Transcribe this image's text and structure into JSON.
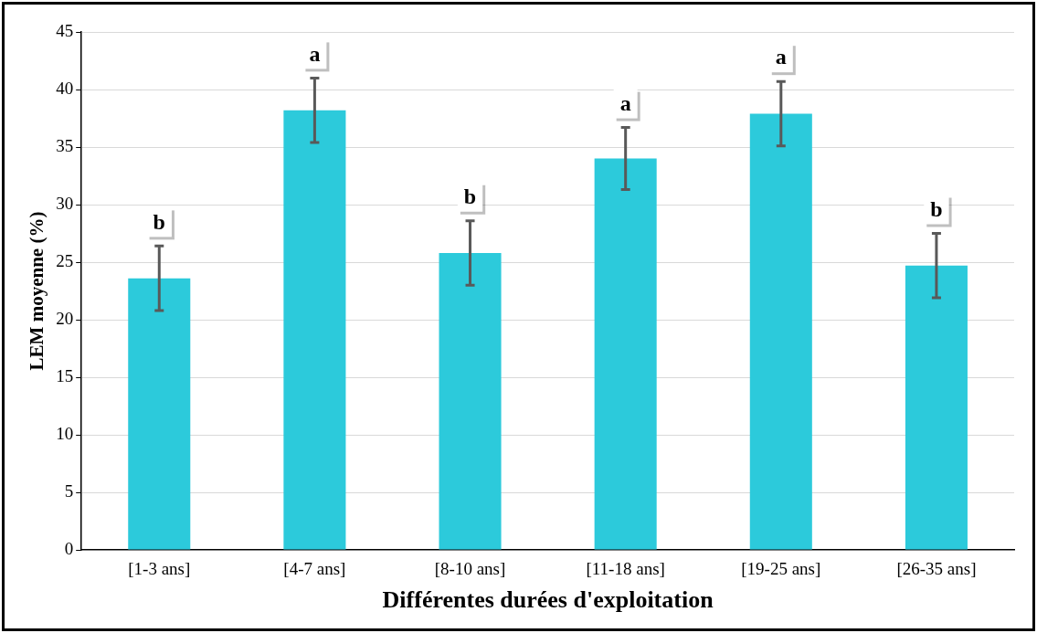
{
  "chart_data": {
    "type": "bar",
    "xlabel": "Différentes durées d'exploitation",
    "ylabel": "LEM moyenne (%)",
    "categories": [
      "[1-3 ans]",
      "[4-7 ans]",
      "[8-10 ans]",
      "[11-18 ans]",
      "[19-25 ans]",
      "[26-35 ans]"
    ],
    "values": [
      23.6,
      38.2,
      25.8,
      34.0,
      37.9,
      24.7
    ],
    "errors": [
      2.8,
      2.8,
      2.8,
      2.7,
      2.8,
      2.8
    ],
    "color": "#2ccadb",
    "ylim": [
      0,
      45
    ],
    "yticks": [
      0,
      5,
      10,
      15,
      20,
      25,
      30,
      35,
      40,
      45
    ],
    "grid": "y",
    "legend": false,
    "annotations": [
      {
        "text": "b",
        "x": "[1-3 ans]",
        "y": 26.4
      },
      {
        "text": "a",
        "x": "[4-7 ans]",
        "y": 41.0
      },
      {
        "text": "b",
        "x": "[8-10 ans]",
        "y": 28.6
      },
      {
        "text": "a",
        "x": "[11-18 ans]",
        "y": 36.7
      },
      {
        "text": "a",
        "x": "[19-25 ans]",
        "y": 40.7
      },
      {
        "text": "b",
        "x": "[26-35 ans]",
        "y": 27.5
      }
    ]
  }
}
